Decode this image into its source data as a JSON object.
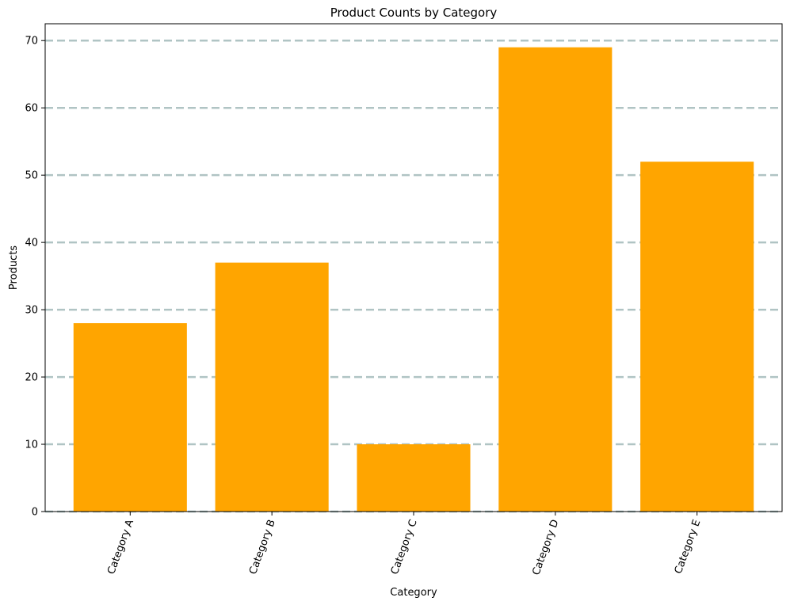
{
  "chart_data": {
    "type": "bar",
    "title": "Product Counts by Category",
    "xlabel": "Category",
    "ylabel": "Products",
    "categories": [
      "Category A",
      "Category B",
      "Category C",
      "Category D",
      "Category E"
    ],
    "values": [
      28,
      37,
      10,
      69,
      52
    ],
    "ylim": [
      0,
      72.5
    ],
    "yticks": [
      0,
      10,
      20,
      30,
      40,
      50,
      60,
      70
    ],
    "grid": true,
    "grid_axis": "y",
    "grid_style": "dashed",
    "xtick_rotation": 70,
    "colors": {
      "bar": "#ffa500",
      "grid": "#b0c4c4",
      "axis": "#000000"
    }
  }
}
